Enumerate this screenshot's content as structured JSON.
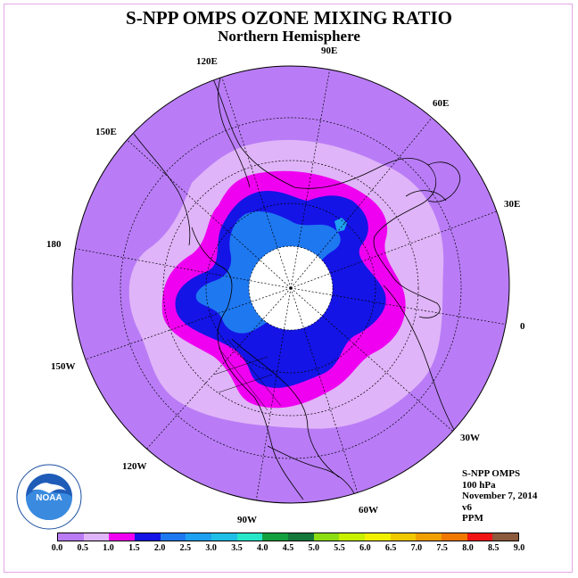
{
  "title": "S-NPP OMPS OZONE MIXING RATIO",
  "subtitle": "Northern Hemisphere",
  "longitude_labels": [
    "90E",
    "60E",
    "30E",
    "0",
    "30W",
    "60W",
    "90W",
    "120W",
    "150W",
    "180",
    "150E",
    "120E"
  ],
  "info": {
    "instrument": "S-NPP OMPS",
    "level": "100 hPa",
    "date": "November 7, 2014",
    "version": "v6",
    "units": "PPM"
  },
  "logo": {
    "text": "NOAA",
    "icon": "noaa-logo-icon"
  },
  "colorbar": {
    "ticks": [
      "0.0",
      "0.5",
      "1.0",
      "1.5",
      "2.0",
      "2.5",
      "3.0",
      "3.5",
      "4.0",
      "4.5",
      "5.0",
      "5.5",
      "6.0",
      "6.5",
      "7.0",
      "7.5",
      "8.0",
      "8.5",
      "9.0"
    ],
    "colors": [
      "#b97cf6",
      "#e0b4f8",
      "#f000f0",
      "#1414e6",
      "#1e78f0",
      "#1ea0f0",
      "#1ebee6",
      "#28e6c8",
      "#14a040",
      "#14783c",
      "#8cdc14",
      "#c8f000",
      "#f0f000",
      "#f0c800",
      "#f0a000",
      "#f07800",
      "#f01414",
      "#8c5a3c"
    ]
  },
  "map_colors": {
    "background": "#b97cf6",
    "band_0_5": "#e0b4f8",
    "band_1_0": "#f000f0",
    "band_1_5": "#1414e6",
    "band_2_0": "#1e78f0",
    "band_2_5": "#1ea0f0",
    "no_data": "#ffffff"
  }
}
